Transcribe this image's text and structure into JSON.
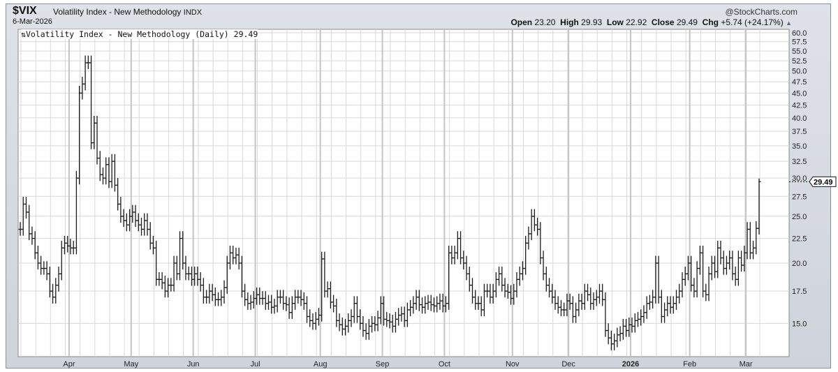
{
  "header": {
    "symbol": "$VIX",
    "name": "Volatility Index - New Methodology",
    "exchange": "INDX",
    "date": "6-Mar-2026",
    "copyright": "@StockCharts.com",
    "open_label": "Open",
    "open": "23.20",
    "high_label": "High",
    "high": "29.93",
    "low_label": "Low",
    "low": "22.92",
    "close_label": "Close",
    "close": "29.49",
    "chg_label": "Chg",
    "chg": "+5.74 (+24.17%)",
    "chg_icon": "triangle-up-icon"
  },
  "legend": "Volatility Index - New Methodology (Daily) 29.49",
  "chart_data": {
    "type": "ohlc-bar",
    "scale": "log",
    "ylim": [
      12.8,
      61
    ],
    "yticks": [
      15.0,
      17.5,
      20.0,
      22.5,
      25.0,
      27.5,
      30.0,
      32.5,
      35.0,
      37.5,
      40.0,
      42.5,
      45.0,
      47.5,
      50.0,
      52.5,
      55.0,
      57.5,
      60.0
    ],
    "month_labels": [
      [
        "Apr",
        17
      ],
      [
        "May",
        38
      ],
      [
        "Jun",
        59
      ],
      [
        "Jul",
        80
      ],
      [
        "Aug",
        102
      ],
      [
        "Sep",
        123
      ],
      [
        "Oct",
        144
      ],
      [
        "Nov",
        167
      ],
      [
        "Dec",
        186
      ],
      [
        "2026",
        207
      ],
      [
        "Feb",
        227
      ],
      [
        "Mar",
        246
      ]
    ],
    "grid": true,
    "last_value_label": "29.49",
    "closes": [
      23.5,
      26.5,
      25.5,
      23,
      22.5,
      21,
      20,
      19.5,
      19.5,
      19,
      17.5,
      17,
      18,
      19,
      21.5,
      22,
      21.7,
      21.5,
      21.5,
      30,
      45,
      47,
      52,
      52,
      35.5,
      39,
      33,
      30.5,
      30,
      32,
      29.5,
      32.5,
      29,
      26.5,
      25,
      24.5,
      24,
      25,
      25.5,
      24.5,
      24,
      23.5,
      24.5,
      23.5,
      22,
      21.5,
      18.5,
      18.5,
      18.2,
      17.5,
      18,
      18,
      20,
      19,
      22.5,
      20,
      19,
      19,
      18.5,
      19,
      18.5,
      18,
      17,
      17,
      17.5,
      17.2,
      16.8,
      16.8,
      17,
      17.8,
      20,
      21,
      20.5,
      20.8,
      20,
      17.5,
      16.8,
      16.5,
      16.6,
      16.9,
      17.2,
      16.9,
      16.9,
      16.5,
      16.6,
      16.2,
      16.3,
      17,
      17,
      16.5,
      16.4,
      15.8,
      16.5,
      17,
      17,
      16.8,
      16.5,
      15.5,
      15.2,
      15,
      15.3,
      15.6,
      20.4,
      17.5,
      17.7,
      16.6,
      16.3,
      15.2,
      14.9,
      14.6,
      14.8,
      15.2,
      15.5,
      16.5,
      15.5,
      15,
      14.5,
      14.3,
      14.8,
      15,
      14.9,
      15.4,
      16.5,
      15.3,
      15.2,
      15.1,
      14.8,
      15.3,
      15.6,
      15.7,
      15.2,
      16,
      16.2,
      16.5,
      17,
      16.4,
      16.2,
      16.5,
      16.6,
      16.4,
      16.3,
      16.5,
      16.7,
      16.3,
      16.5,
      21,
      20.5,
      21,
      22.5,
      20.5,
      20,
      19,
      18,
      17,
      16.5,
      16.5,
      16,
      17.5,
      17.5,
      17,
      17.5,
      18.5,
      19,
      18,
      17.5,
      17.4,
      16.9,
      17.5,
      18.5,
      19,
      19.5,
      22,
      23,
      25,
      24,
      23.5,
      20.5,
      19,
      18,
      17.5,
      17,
      16.5,
      16.2,
      16,
      16,
      16.7,
      16.5,
      15.5,
      16,
      16.7,
      16.5,
      17.5,
      17.2,
      16.5,
      16.8,
      17,
      17.5,
      16.8,
      14.5,
      14,
      13.6,
      13.8,
      14.2,
      14.3,
      14.8,
      14.5,
      14.9,
      14.8,
      15.2,
      15.3,
      15.5,
      15.8,
      16.5,
      16.6,
      17,
      20,
      17,
      15.5,
      16,
      16.5,
      16.2,
      16.5,
      17,
      17.5,
      18.5,
      19,
      20,
      18,
      17.5,
      19.5,
      21,
      17.5,
      17.2,
      19,
      20,
      19.2,
      21.5,
      20.5,
      19.5,
      20,
      20.5,
      19,
      18.5,
      20.5,
      19.8,
      21,
      23.5,
      21,
      21.5,
      23.6,
      29.49
    ],
    "last_bar": {
      "open": 23.2,
      "high": 29.93,
      "low": 22.92,
      "close": 29.49
    },
    "colors": {
      "bars": "#1a1a1a",
      "grid": "#d8d8d8",
      "month_grid": "#c4c4c4",
      "frame": "#cfd3db"
    }
  }
}
